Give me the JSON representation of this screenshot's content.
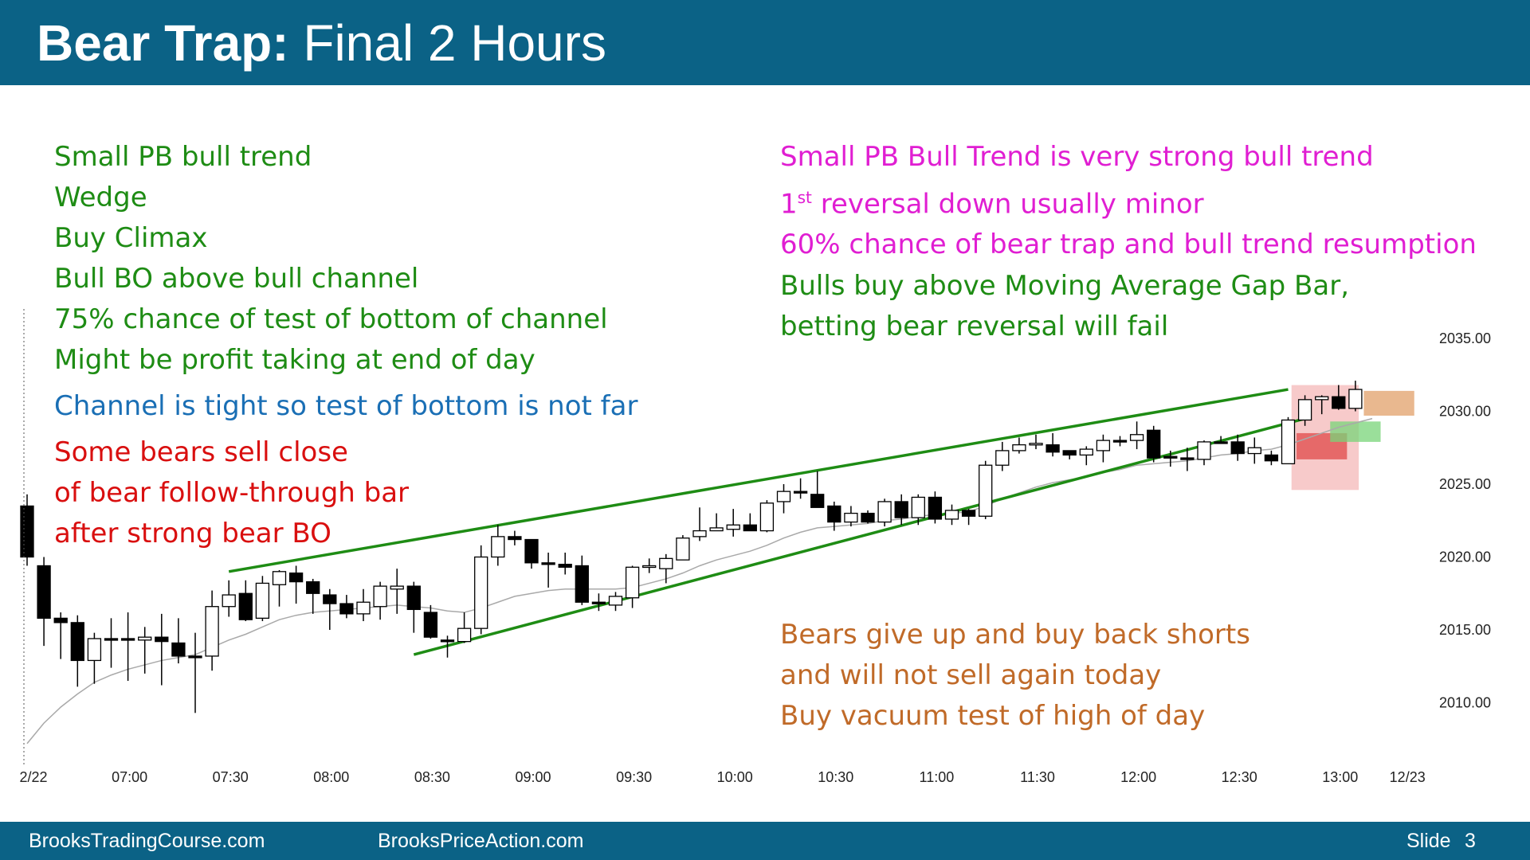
{
  "header": {
    "title_bold": "Bear Trap:",
    "title_rest": "Final 2 Hours"
  },
  "footer": {
    "site1": "BrooksTradingCourse.com",
    "site2": "BrooksPriceAction.com",
    "slide_label": "Slide",
    "slide_number": "3"
  },
  "colors": {
    "header_bg": "#0b6286",
    "green": "#1e8c14",
    "magenta": "#e01ed2",
    "blue": "#1a6fb5",
    "red": "#d90f0f",
    "orange": "#c06a28",
    "channel_line": "#1e8c14",
    "moving_average": "#a9a9a9"
  },
  "annotations": {
    "left_green": [
      "Small PB bull trend",
      "Wedge",
      "Buy Climax",
      "Bull BO above bull channel",
      "75% chance of test of bottom of channel",
      "Might be profit taking at end of day"
    ],
    "left_blue": "Channel is tight so test of bottom is not far",
    "left_red": [
      "Some bears sell close",
      "of bear follow-through bar",
      "after strong bear BO"
    ],
    "right_magenta_1": "Small PB Bull Trend is very strong bull trend",
    "right_magenta_2_pre": "1",
    "right_magenta_2_sup": "st",
    "right_magenta_2_post": " reversal down usually minor",
    "right_magenta_3": "60% chance of bear trap and bull trend resumption",
    "right_green": [
      "Bulls buy above Moving Average Gap Bar,",
      "betting bear reversal will fail"
    ],
    "right_orange": [
      "Bears give up and buy back shorts",
      "and will not sell again today",
      "Buy vacuum test of high of day"
    ]
  },
  "chart_data": {
    "type": "candlestick",
    "bar_minutes": 5,
    "y_ticks": [
      "2035.00",
      "2030.00",
      "2025.00",
      "2020.00",
      "2015.00",
      "2010.00"
    ],
    "y_tick_values": [
      2035,
      2030,
      2025,
      2020,
      2015,
      2010
    ],
    "ylim": [
      2006,
      2037
    ],
    "x_ticks": [
      "2/22",
      "07:00",
      "07:30",
      "08:00",
      "08:30",
      "09:00",
      "09:30",
      "10:00",
      "10:30",
      "11:00",
      "11:30",
      "12:00",
      "12:30",
      "13:00",
      "12/23"
    ],
    "x_tick_bar_index": [
      0,
      6,
      12,
      18,
      24,
      30,
      36,
      42,
      48,
      54,
      60,
      66,
      72,
      78,
      82
    ],
    "candles": [
      [
        2023.5,
        2024.3,
        2019.4,
        2020.0
      ],
      [
        2019.4,
        2020.0,
        2013.9,
        2015.8
      ],
      [
        2015.8,
        2016.2,
        2013.0,
        2015.5
      ],
      [
        2015.5,
        2016.0,
        2011.1,
        2012.9
      ],
      [
        2012.9,
        2014.8,
        2011.3,
        2014.4
      ],
      [
        2014.4,
        2015.8,
        2012.4,
        2014.4
      ],
      [
        2014.4,
        2016.2,
        2011.5,
        2014.4
      ],
      [
        2014.3,
        2015.2,
        2012.0,
        2014.5
      ],
      [
        2014.5,
        2016.1,
        2011.2,
        2014.2
      ],
      [
        2014.1,
        2015.8,
        2012.7,
        2013.2
      ],
      [
        2013.2,
        2014.8,
        2009.3,
        2013.2
      ],
      [
        2013.2,
        2017.7,
        2012.2,
        2016.6
      ],
      [
        2016.6,
        2018.4,
        2015.9,
        2017.4
      ],
      [
        2017.5,
        2018.4,
        2015.6,
        2015.7
      ],
      [
        2015.8,
        2018.7,
        2015.6,
        2018.2
      ],
      [
        2018.1,
        2019.1,
        2016.6,
        2019.0
      ],
      [
        2018.9,
        2019.4,
        2016.8,
        2018.3
      ],
      [
        2018.3,
        2018.5,
        2016.1,
        2017.5
      ],
      [
        2017.4,
        2017.8,
        2015.0,
        2016.8
      ],
      [
        2016.8,
        2017.4,
        2015.8,
        2016.1
      ],
      [
        2016.1,
        2017.8,
        2015.6,
        2016.9
      ],
      [
        2016.6,
        2018.3,
        2015.7,
        2018.0
      ],
      [
        2017.8,
        2019.2,
        2016.1,
        2018.0
      ],
      [
        2018.0,
        2018.3,
        2014.8,
        2016.4
      ],
      [
        2016.2,
        2016.7,
        2014.4,
        2014.5
      ],
      [
        2014.3,
        2014.6,
        2013.1,
        2014.2
      ],
      [
        2014.2,
        2016.2,
        2014.1,
        2015.1
      ],
      [
        2015.1,
        2020.8,
        2014.7,
        2020.0
      ],
      [
        2020.0,
        2022.2,
        2019.4,
        2021.4
      ],
      [
        2021.4,
        2021.8,
        2020.8,
        2021.2
      ],
      [
        2021.2,
        2021.2,
        2019.2,
        2019.6
      ],
      [
        2019.6,
        2020.3,
        2017.9,
        2019.5
      ],
      [
        2019.5,
        2020.3,
        2018.8,
        2019.3
      ],
      [
        2019.4,
        2020.1,
        2016.7,
        2016.9
      ],
      [
        2016.9,
        2017.5,
        2016.3,
        2016.9
      ],
      [
        2016.7,
        2017.6,
        2016.3,
        2017.3
      ],
      [
        2017.2,
        2019.4,
        2016.5,
        2019.3
      ],
      [
        2019.3,
        2019.9,
        2018.9,
        2019.4
      ],
      [
        2019.2,
        2020.2,
        2018.2,
        2019.9
      ],
      [
        2019.8,
        2021.5,
        2019.8,
        2021.3
      ],
      [
        2021.4,
        2023.4,
        2021.1,
        2021.8
      ],
      [
        2021.8,
        2023.0,
        2021.8,
        2022.0
      ],
      [
        2021.9,
        2023.3,
        2021.4,
        2022.2
      ],
      [
        2022.2,
        2023.0,
        2021.8,
        2021.8
      ],
      [
        2021.8,
        2023.9,
        2021.7,
        2023.7
      ],
      [
        2023.8,
        2025.0,
        2023.0,
        2024.5
      ],
      [
        2024.5,
        2025.4,
        2024.0,
        2024.5
      ],
      [
        2024.3,
        2025.9,
        2023.6,
        2023.4
      ],
      [
        2023.5,
        2023.8,
        2021.8,
        2022.4
      ],
      [
        2022.4,
        2023.5,
        2022.1,
        2023.0
      ],
      [
        2023.0,
        2023.2,
        2022.3,
        2022.4
      ],
      [
        2022.4,
        2024.0,
        2022.1,
        2023.8
      ],
      [
        2023.8,
        2024.3,
        2022.2,
        2022.7
      ],
      [
        2022.7,
        2024.3,
        2022.2,
        2024.1
      ],
      [
        2024.1,
        2024.5,
        2022.3,
        2022.6
      ],
      [
        2022.6,
        2023.6,
        2022.2,
        2023.2
      ],
      [
        2023.2,
        2023.3,
        2022.2,
        2022.8
      ],
      [
        2022.8,
        2026.6,
        2022.6,
        2026.3
      ],
      [
        2026.3,
        2027.9,
        2025.9,
        2027.3
      ],
      [
        2027.3,
        2028.2,
        2027.1,
        2027.7
      ],
      [
        2027.7,
        2028.4,
        2027.4,
        2027.8
      ],
      [
        2027.7,
        2028.5,
        2026.9,
        2027.2
      ],
      [
        2027.3,
        2027.3,
        2026.7,
        2027.0
      ],
      [
        2027.0,
        2027.6,
        2026.3,
        2027.4
      ],
      [
        2027.3,
        2028.4,
        2026.5,
        2028.0
      ],
      [
        2028.0,
        2028.3,
        2027.6,
        2027.9
      ],
      [
        2028.0,
        2029.3,
        2027.4,
        2028.4
      ],
      [
        2028.7,
        2029.0,
        2026.5,
        2026.8
      ],
      [
        2026.9,
        2027.3,
        2026.2,
        2026.8
      ],
      [
        2026.8,
        2027.5,
        2025.9,
        2026.8
      ],
      [
        2026.7,
        2028.0,
        2026.3,
        2027.9
      ],
      [
        2027.9,
        2028.3,
        2027.8,
        2027.9
      ],
      [
        2027.9,
        2028.4,
        2026.6,
        2027.1
      ],
      [
        2027.1,
        2028.2,
        2026.4,
        2027.5
      ],
      [
        2027.0,
        2027.3,
        2026.3,
        2026.6
      ],
      [
        2026.4,
        2029.6,
        2026.4,
        2029.4
      ],
      [
        2029.4,
        2031.1,
        2029.0,
        2030.8
      ],
      [
        2030.8,
        2031.1,
        2029.8,
        2031.0
      ],
      [
        2031.0,
        2031.8,
        2030.1,
        2030.2
      ],
      [
        2030.2,
        2032.1,
        2030.0,
        2031.5
      ]
    ],
    "channel_lines": [
      {
        "from": [
          12,
          2019.0
        ],
        "to": [
          75,
          2031.5
        ]
      },
      {
        "from": [
          23,
          2013.3
        ],
        "to": [
          76,
          2029.5
        ]
      }
    ],
    "highlight_boxes": [
      {
        "color": "#f4b8b8",
        "x": [
          75.2,
          79.2
        ],
        "y": [
          2024.6,
          2031.8
        ]
      },
      {
        "color": "#e04848",
        "x": [
          75.5,
          78.5
        ],
        "y": [
          2026.7,
          2028.5
        ]
      },
      {
        "color": "#78d478",
        "x": [
          77.5,
          80.5
        ],
        "y": [
          2027.9,
          2029.3
        ]
      },
      {
        "color": "#e2a06a",
        "x": [
          79.5,
          82.5
        ],
        "y": [
          2029.7,
          2031.4
        ]
      }
    ],
    "moving_average": [
      2007.2,
      2008.6,
      2009.7,
      2010.6,
      2011.4,
      2011.9,
      2012.3,
      2012.6,
      2012.9,
      2013.1,
      2013.3,
      2013.8,
      2014.3,
      2014.7,
      2015.2,
      2015.7,
      2016.0,
      2016.2,
      2016.3,
      2016.4,
      2016.5,
      2016.6,
      2016.7,
      2016.6,
      2016.5,
      2016.3,
      2016.2,
      2016.5,
      2016.9,
      2017.3,
      2017.5,
      2017.7,
      2017.8,
      2017.8,
      2017.8,
      2017.8,
      2017.9,
      2018.2,
      2018.5,
      2018.9,
      2019.4,
      2019.8,
      2020.1,
      2020.4,
      2020.8,
      2021.3,
      2021.7,
      2022.0,
      2022.1,
      2022.2,
      2022.3,
      2022.5,
      2022.6,
      2022.8,
      2022.9,
      2023.0,
      2023.1,
      2023.5,
      2024.0,
      2024.4,
      2024.8,
      2025.1,
      2025.3,
      2025.5,
      2025.8,
      2026.0,
      2026.3,
      2026.4,
      2026.5,
      2026.6,
      2026.8,
      2027.0,
      2027.1,
      2027.3,
      2027.4,
      2027.7,
      2028.1,
      2028.5,
      2028.9,
      2029.2,
      2029.5
    ]
  }
}
